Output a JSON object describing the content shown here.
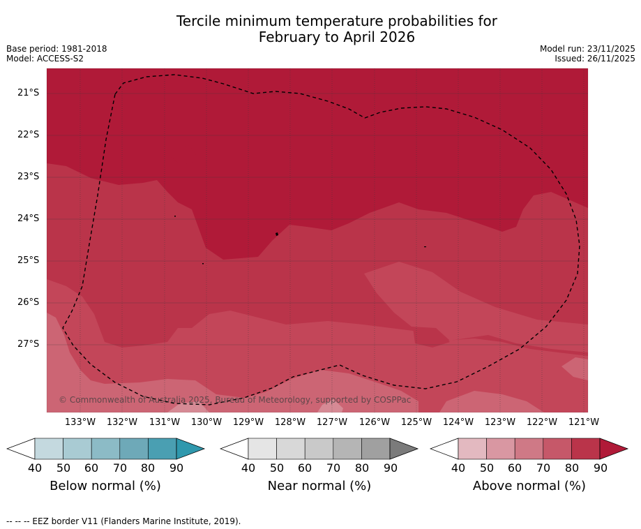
{
  "title_line1": "Tercile minimum temperature probabilities for",
  "title_line2": "February to April 2026",
  "base_period": "Base period: 1981-2018",
  "model": "Model: ACCESS-S2",
  "model_run": "Model run: 23/11/2025",
  "issued": "Issued: 26/11/2025",
  "copyright": "© Commonwealth of Australia 2025, Bureau of Meteorology, supported by COSPPac",
  "lat_labels": [
    "21°S",
    "22°S",
    "23°S",
    "24°S",
    "25°S",
    "26°S",
    "27°S"
  ],
  "lon_labels": [
    "133°W",
    "132°W",
    "131°W",
    "130°W",
    "129°W",
    "128°W",
    "127°W",
    "126°W",
    "125°W",
    "124°W",
    "123°W",
    "122°W",
    "121°W"
  ],
  "colorbars": [
    {
      "label": "Below normal (%)",
      "ticks": [
        "40",
        "50",
        "60",
        "70",
        "80",
        "90"
      ],
      "colors": [
        "#ffffff",
        "#c4d9df",
        "#a9cbd3",
        "#8cbbc6",
        "#6ea9b8",
        "#4a9fb2",
        "#2f98ad"
      ]
    },
    {
      "label": "Near normal (%)",
      "ticks": [
        "40",
        "50",
        "60",
        "70",
        "80",
        "90"
      ],
      "colors": [
        "#ffffff",
        "#e5e5e5",
        "#d8d8d8",
        "#c9c9c9",
        "#b5b5b5",
        "#a0a0a0",
        "#7b7b7b"
      ]
    },
    {
      "label": "Above normal (%)",
      "ticks": [
        "40",
        "50",
        "60",
        "70",
        "80",
        "90"
      ],
      "colors": [
        "#ffffff",
        "#e3b9c0",
        "#d997a2",
        "#cf7986",
        "#c65869",
        "#ba344a",
        "#b01a38"
      ]
    }
  ],
  "footnote": "--  --  -- EEZ border V11 (Flanders Marine Institute, 2019)."
}
